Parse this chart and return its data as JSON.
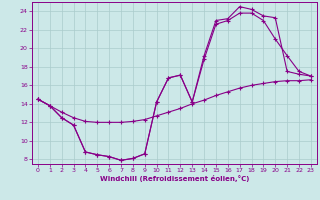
{
  "xlabel": "Windchill (Refroidissement éolien,°C)",
  "bg_color": "#cce8e8",
  "line_color": "#880088",
  "grid_color": "#aacccc",
  "xlim": [
    -0.5,
    23.5
  ],
  "ylim": [
    7.5,
    25.0
  ],
  "yticks": [
    8,
    10,
    12,
    14,
    16,
    18,
    20,
    22,
    24
  ],
  "xticks": [
    0,
    1,
    2,
    3,
    4,
    5,
    6,
    7,
    8,
    9,
    10,
    11,
    12,
    13,
    14,
    15,
    16,
    17,
    18,
    19,
    20,
    21,
    22,
    23
  ],
  "line1_x": [
    0,
    1,
    2,
    3,
    4,
    5,
    6,
    7,
    8,
    9,
    10,
    11,
    12,
    13,
    14,
    15,
    16,
    17,
    18,
    19,
    20,
    21,
    22,
    23
  ],
  "line1_y": [
    14.5,
    13.8,
    12.5,
    11.7,
    8.8,
    8.5,
    8.3,
    7.9,
    8.1,
    8.6,
    14.2,
    16.8,
    17.1,
    14.2,
    19.2,
    23.0,
    23.2,
    24.5,
    24.2,
    23.5,
    23.3,
    17.5,
    17.2,
    17.0
  ],
  "line2_x": [
    0,
    1,
    2,
    3,
    4,
    5,
    6,
    7,
    8,
    9,
    10,
    11,
    12,
    13,
    14,
    15,
    16,
    17,
    18,
    19,
    20,
    21,
    22,
    23
  ],
  "line2_y": [
    14.5,
    13.8,
    12.5,
    11.7,
    8.8,
    8.5,
    8.3,
    7.9,
    8.1,
    8.6,
    14.2,
    16.8,
    17.1,
    14.2,
    18.8,
    22.6,
    23.0,
    23.8,
    23.8,
    23.0,
    21.0,
    19.2,
    17.5,
    17.0
  ],
  "line3_x": [
    0,
    1,
    2,
    3,
    4,
    5,
    6,
    7,
    8,
    9,
    10,
    11,
    12,
    13,
    14,
    15,
    16,
    17,
    18,
    19,
    20,
    21,
    22,
    23
  ],
  "line3_y": [
    14.5,
    13.8,
    13.1,
    12.5,
    12.1,
    12.0,
    12.0,
    12.0,
    12.1,
    12.3,
    12.7,
    13.1,
    13.5,
    14.0,
    14.4,
    14.9,
    15.3,
    15.7,
    16.0,
    16.2,
    16.4,
    16.5,
    16.5,
    16.6
  ]
}
